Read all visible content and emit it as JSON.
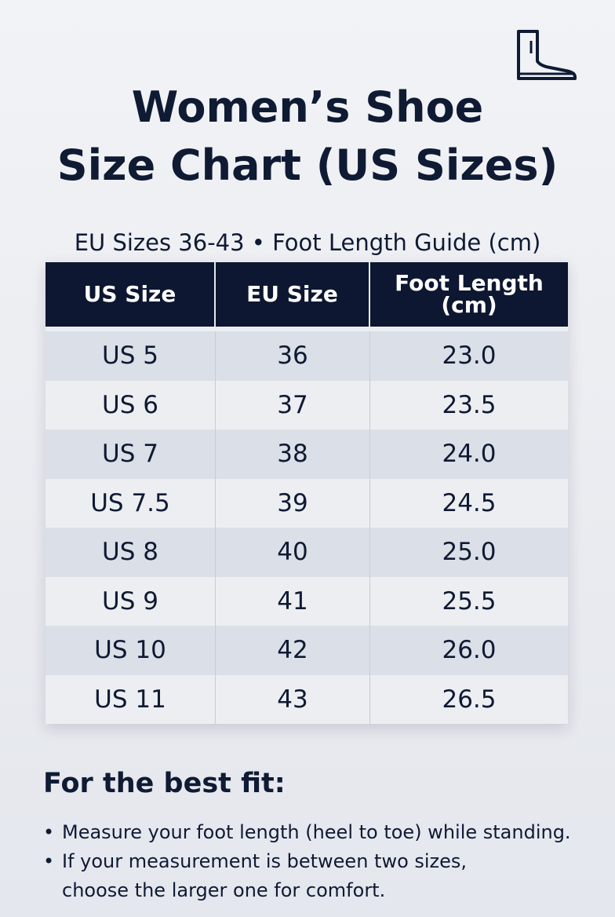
{
  "header": {
    "title": [
      "Women’s Shoe",
      "Size Chart (US Sizes)"
    ],
    "subtitle": "EU Sizes 36-43 • Foot Length Guide (cm)"
  },
  "table": {
    "columns": [
      "US Size",
      "EU Size",
      "Foot Length (cm)"
    ],
    "rows": [
      [
        "US 5",
        "36",
        "23.0"
      ],
      [
        "US 6",
        "37",
        "23.5"
      ],
      [
        "US 7",
        "38",
        "24.0"
      ],
      [
        "US 7.5",
        "39",
        "24.5"
      ],
      [
        "US 8",
        "40",
        "25.0"
      ],
      [
        "US 9",
        "41",
        "25.5"
      ],
      [
        "US 10",
        "42",
        "26.0"
      ],
      [
        "US 11",
        "43",
        "26.5"
      ]
    ]
  },
  "tips": {
    "heading": "For the best fit:",
    "items": [
      "Measure your foot length (heel to toe) while standing.",
      "If your measurement is between two sizes, choose the larger one for comfort."
    ]
  }
}
